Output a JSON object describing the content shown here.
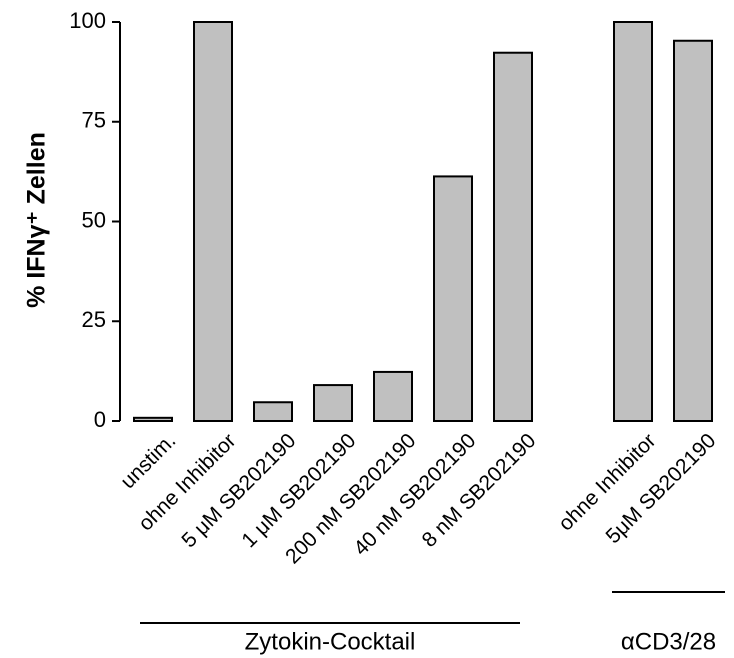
{
  "chart_data": {
    "type": "bar",
    "y_label": "% IFNγ⁺ Zellen",
    "categories": [
      "unstim.",
      "ohne Inhibitor",
      "5 μM SB202190",
      "1 μM SB202190",
      "200 nM SB202190",
      "40 nM SB202190",
      "8 nM SB202190",
      null,
      "ohne Inhibitor",
      "5μM SB202190"
    ],
    "values": [
      0.8,
      100,
      4.7,
      9,
      12.3,
      61.3,
      92.3,
      null,
      100,
      95.3
    ],
    "color": "#c0c0c0",
    "ylim": [
      0,
      100
    ],
    "yticks": [
      0,
      25,
      50,
      75,
      100
    ],
    "grid": false,
    "groups": [
      "Zytokin-Cocktail",
      "αCD3/28"
    ]
  }
}
